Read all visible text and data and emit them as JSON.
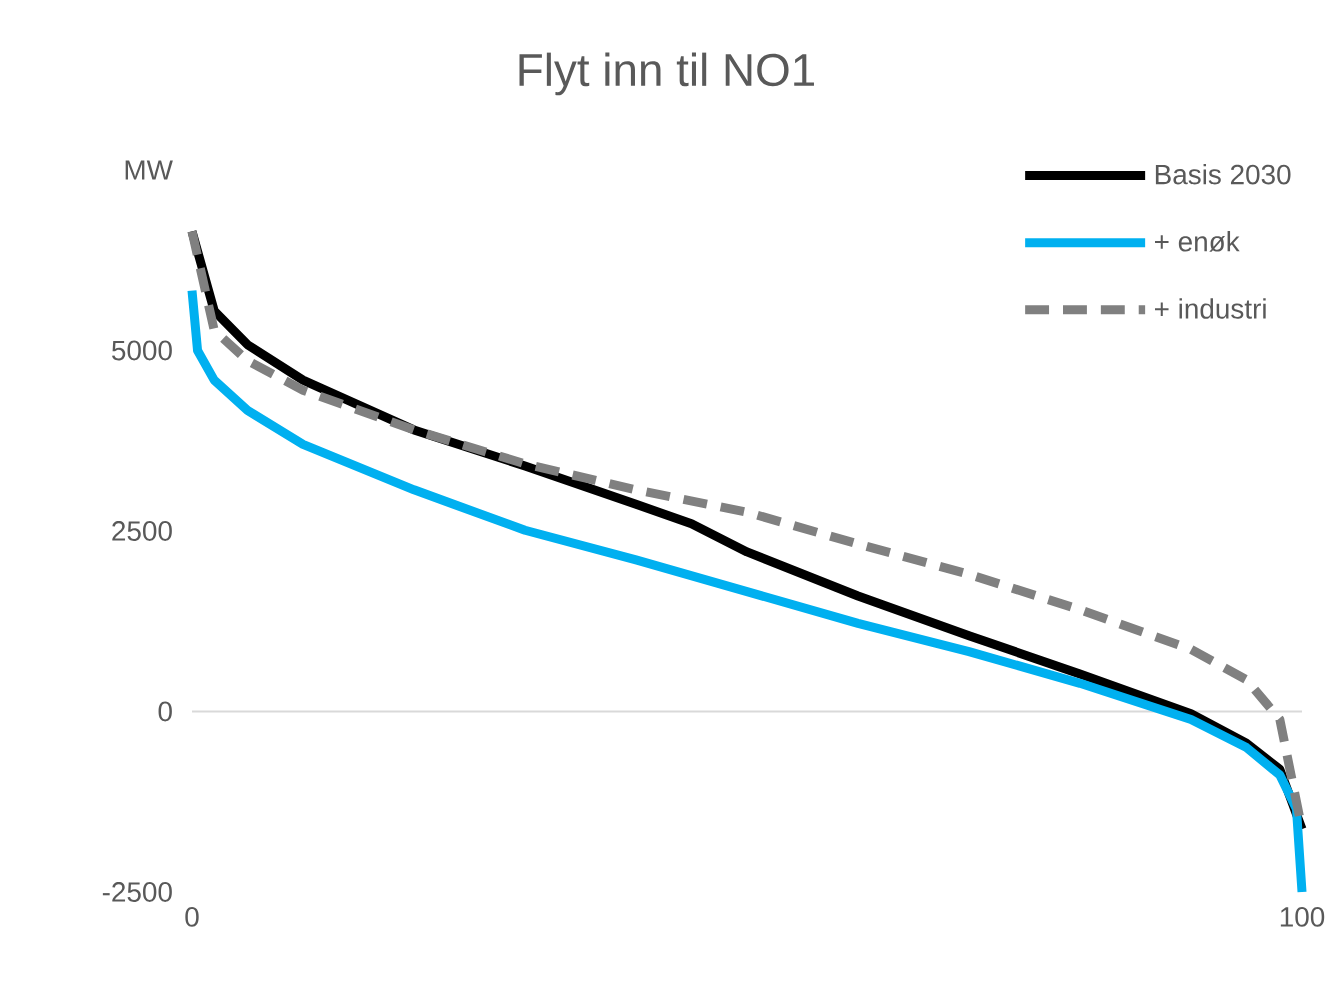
{
  "chart_data": {
    "type": "line",
    "title": "Flyt inn til NO1",
    "xlim": [
      0,
      100
    ],
    "xticks": [
      0,
      100
    ],
    "ylim": [
      -2500,
      7500
    ],
    "yticks": [
      -2500,
      0,
      2500,
      5000,
      {
        "value": 7500,
        "label": "MW"
      }
    ],
    "grid": false,
    "legend": "top right",
    "marker": "none",
    "ref_lines": [
      {
        "axis": "y",
        "value": 0,
        "color": "#d9d9d9"
      }
    ],
    "series": [
      {
        "name": "Basis 2030",
        "color": "#000000",
        "line_style": "solid",
        "x": [
          0,
          2,
          5,
          10,
          20,
          30,
          40,
          45,
          50,
          60,
          70,
          80,
          90,
          95,
          98,
          100
        ],
        "values": [
          6650,
          5550,
          5080,
          4590,
          3900,
          3400,
          2870,
          2600,
          2210,
          1600,
          1050,
          520,
          -30,
          -440,
          -800,
          -1630
        ]
      },
      {
        "name": "+ enøk",
        "color": "#00b0f0",
        "line_style": "solid",
        "x": [
          0,
          0.5,
          2,
          5,
          10,
          20,
          30,
          40,
          50,
          60,
          70,
          80,
          90,
          95,
          98,
          99.5,
          100
        ],
        "values": [
          5830,
          5000,
          4590,
          4170,
          3700,
          3070,
          2510,
          2100,
          1660,
          1220,
          830,
          390,
          -110,
          -500,
          -880,
          -1350,
          -2500
        ]
      },
      {
        "name": "+ industri",
        "color": "#808080",
        "line_style": "dashed",
        "x": [
          0,
          2,
          5,
          10,
          20,
          30,
          40,
          50,
          60,
          70,
          80,
          90,
          95,
          98,
          100
        ],
        "values": [
          6650,
          5280,
          4860,
          4450,
          3900,
          3430,
          3070,
          2760,
          2320,
          1900,
          1410,
          860,
          440,
          -110,
          -1630
        ]
      }
    ]
  }
}
